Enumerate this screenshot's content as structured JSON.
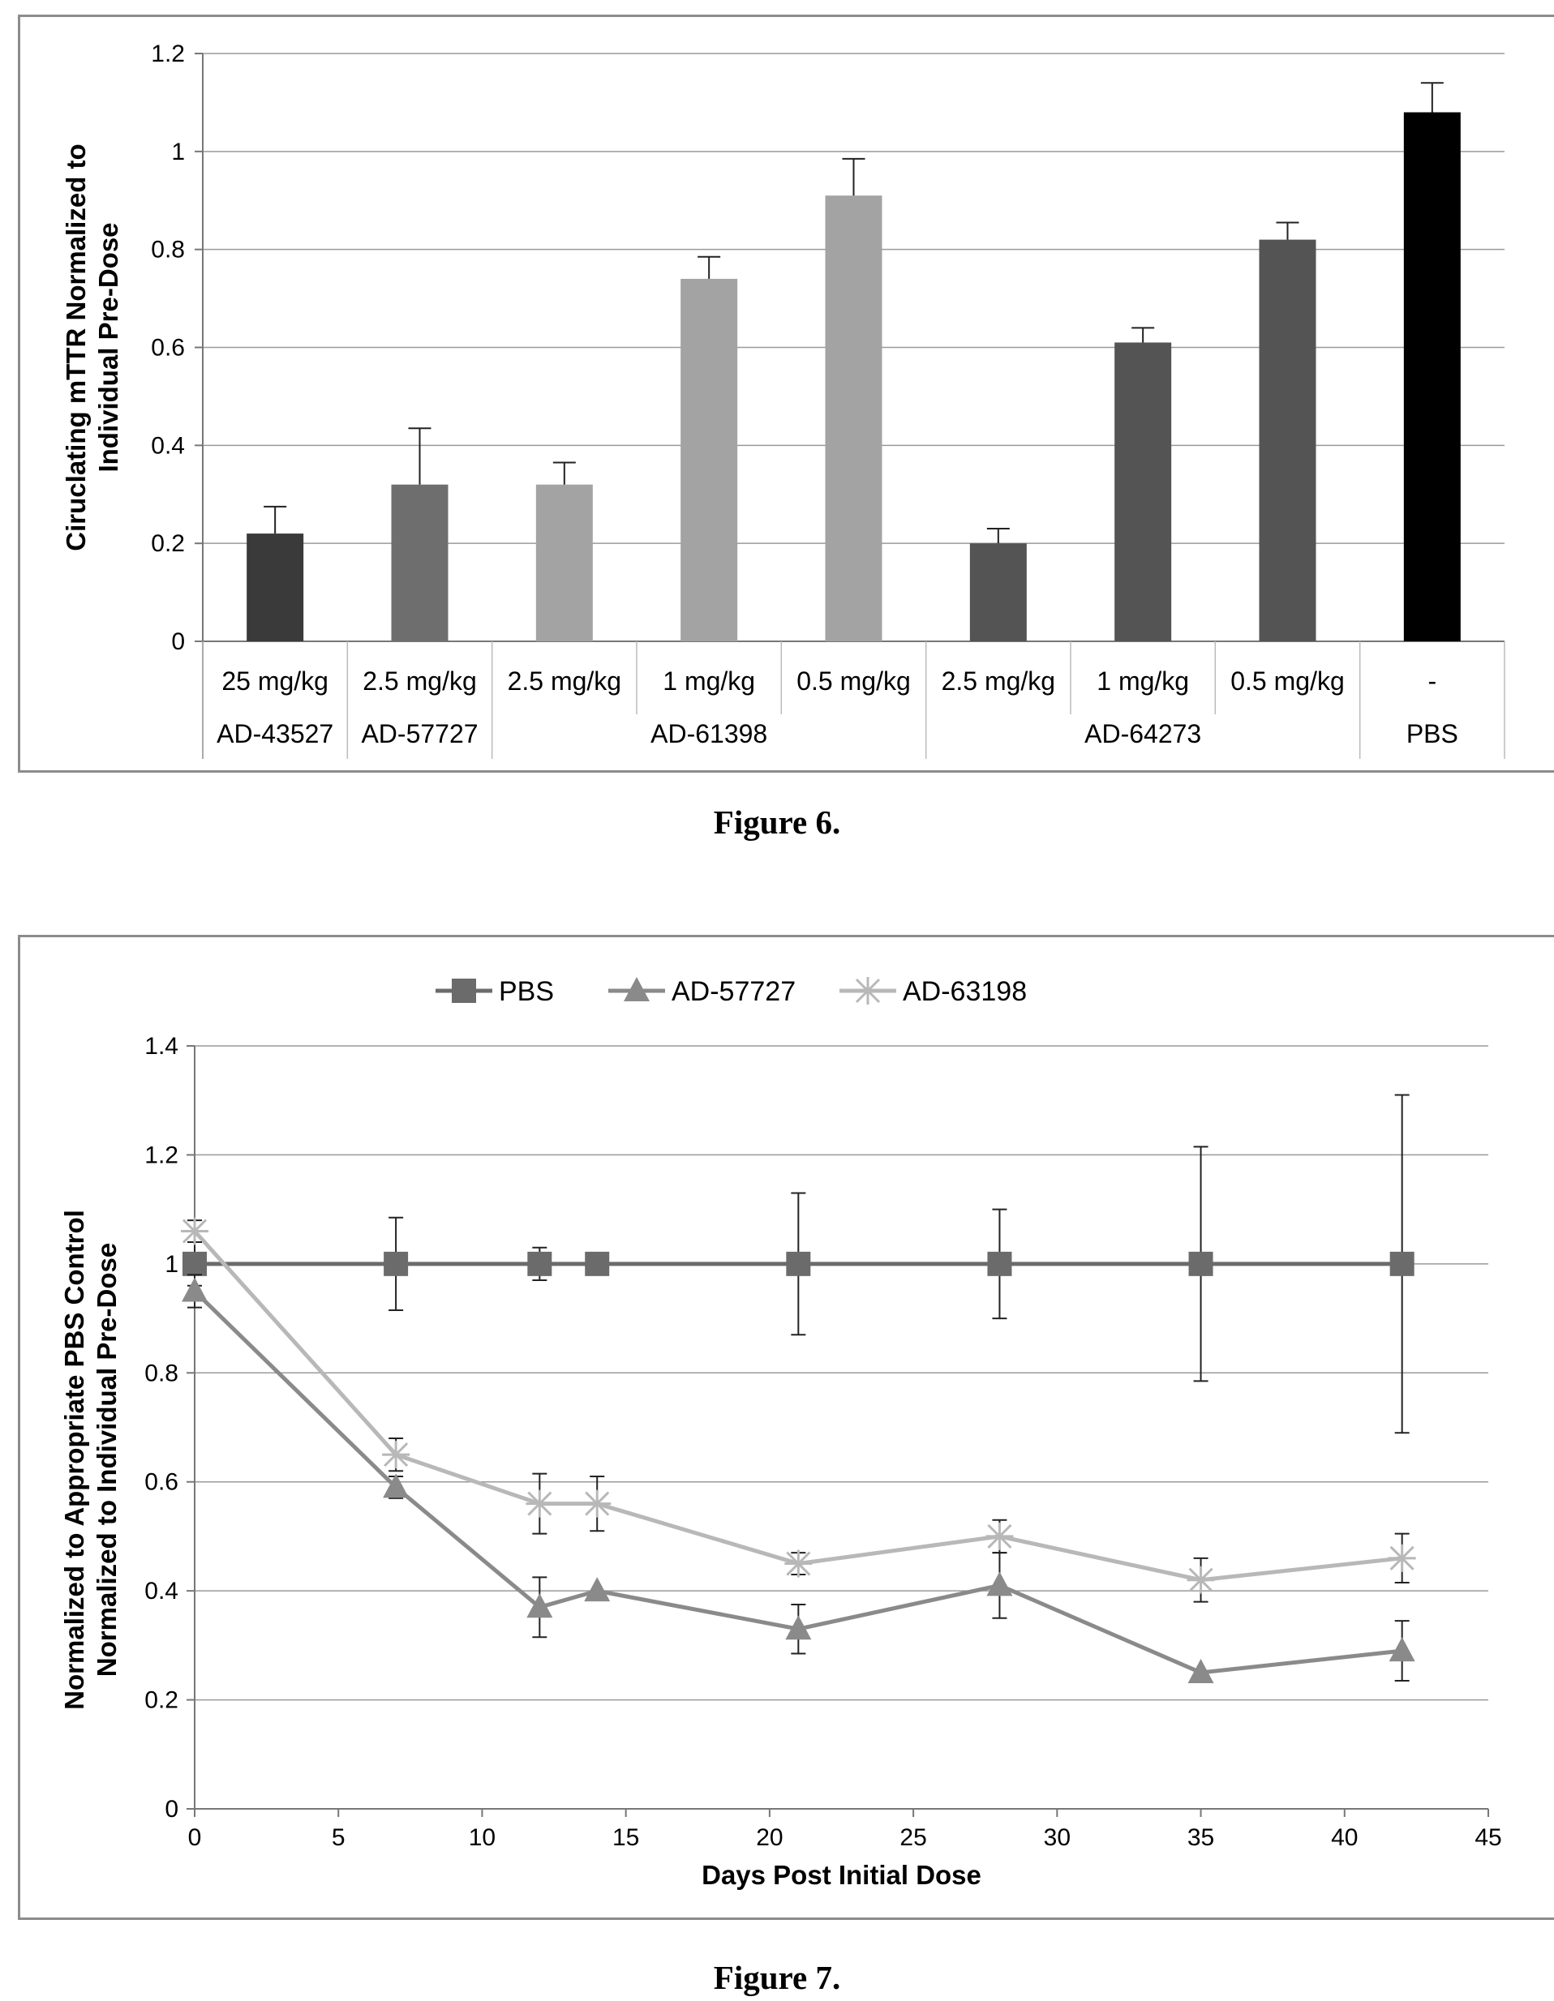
{
  "figures": [
    {
      "caption": "Figure 6."
    },
    {
      "caption": "Figure 7."
    }
  ],
  "chart_data": [
    {
      "type": "bar",
      "ylabel": "Ciruclating mTTR Normalized to Individual Pre-Dose",
      "ylim": [
        0,
        1.2
      ],
      "yticks": [
        "0",
        "0.2",
        "0.4",
        "0.6",
        "0.8",
        "1",
        "1.2"
      ],
      "grid": true,
      "categories": [
        "25 mg/kg",
        "2.5 mg/kg",
        "2.5 mg/kg",
        "1 mg/kg",
        "0.5 mg/kg",
        "2.5 mg/kg",
        "1 mg/kg",
        "0.5 mg/kg",
        "-"
      ],
      "values": [
        0.22,
        0.32,
        0.32,
        0.74,
        0.91,
        0.2,
        0.61,
        0.82,
        1.08
      ],
      "error_upper": [
        0.055,
        0.115,
        0.045,
        0.045,
        0.075,
        0.03,
        0.03,
        0.035,
        0.06
      ],
      "colors": [
        "#3a3a3a",
        "#6e6e6e",
        "#a3a3a3",
        "#a3a3a3",
        "#a3a3a3",
        "#545454",
        "#545454",
        "#545454",
        "#000000"
      ],
      "groups": [
        {
          "label": "AD-43527",
          "span": 1
        },
        {
          "label": "AD-57727",
          "span": 1
        },
        {
          "label": "AD-61398",
          "span": 3
        },
        {
          "label": "AD-64273",
          "span": 3
        },
        {
          "label": "PBS",
          "span": 1
        }
      ]
    },
    {
      "type": "line",
      "xlabel": "Days Post Initial Dose",
      "ylabel": "Normalized to Appropriate PBS Control Normalized to Individual Pre-Dose",
      "xlim": [
        0,
        45
      ],
      "ylim": [
        0,
        1.4
      ],
      "xticks": [
        "0",
        "5",
        "10",
        "15",
        "20",
        "25",
        "30",
        "35",
        "40",
        "45"
      ],
      "yticks": [
        "0",
        "0.2",
        "0.4",
        "0.6",
        "0.8",
        "1",
        "1.2",
        "1.4"
      ],
      "grid": true,
      "legend_position": "top",
      "series": [
        {
          "name": "PBS",
          "marker": "square",
          "color": "#6b6b6b",
          "x": [
            0,
            7,
            12,
            14,
            21,
            28,
            35,
            42
          ],
          "y": [
            1.0,
            1.0,
            1.0,
            1.0,
            1.0,
            1.0,
            1.0,
            1.0
          ],
          "err": [
            0.04,
            0.085,
            0.03,
            0.0,
            0.13,
            0.1,
            0.215,
            0.31
          ]
        },
        {
          "name": "AD-57727",
          "marker": "triangle",
          "color": "#8a8a8a",
          "x": [
            0,
            7,
            12,
            14,
            21,
            28,
            35,
            42
          ],
          "y": [
            0.95,
            0.59,
            0.37,
            0.4,
            0.33,
            0.41,
            0.25,
            0.29
          ],
          "err": [
            0.03,
            0.02,
            0.055,
            0.0,
            0.045,
            0.06,
            0.0,
            0.055
          ]
        },
        {
          "name": "AD-63198",
          "marker": "star",
          "color": "#b8b8b8",
          "x": [
            0,
            7,
            12,
            14,
            21,
            28,
            35,
            42
          ],
          "y": [
            1.06,
            0.65,
            0.56,
            0.56,
            0.45,
            0.5,
            0.42,
            0.46
          ],
          "err": [
            0.02,
            0.03,
            0.055,
            0.05,
            0.02,
            0.03,
            0.04,
            0.045
          ]
        }
      ]
    }
  ]
}
